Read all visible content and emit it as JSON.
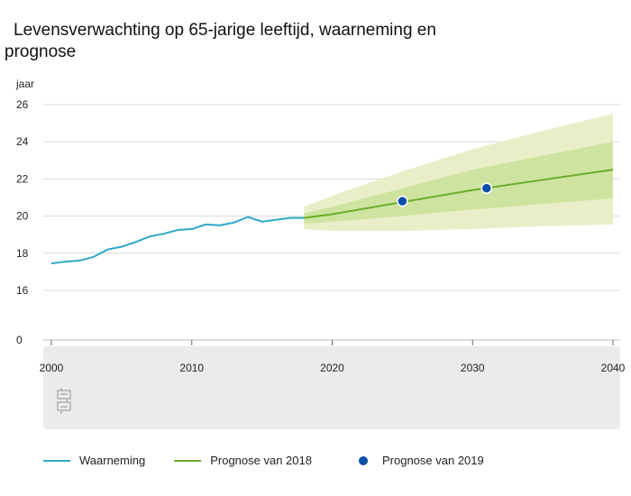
{
  "chart_data": {
    "type": "line",
    "title": "Levensverwachting op 65-jarige leeftijd, waarneming en prognose",
    "ylabel": "jaar",
    "xlabel": "",
    "ylim": [
      0,
      26
    ],
    "xlim": [
      2000,
      2040
    ],
    "yticks": [
      0,
      16,
      18,
      20,
      22,
      24,
      26
    ],
    "xticks": [
      2000,
      2010,
      2020,
      2030,
      2040
    ],
    "grid": true,
    "legend_position": "bottom",
    "series": [
      {
        "name": "Waarneming",
        "type": "line",
        "color": "#2ea8c9",
        "x": [
          2000,
          2001,
          2002,
          2003,
          2004,
          2005,
          2006,
          2007,
          2008,
          2009,
          2010,
          2011,
          2012,
          2013,
          2014,
          2015,
          2016,
          2017,
          2018
        ],
        "values": [
          17.45,
          17.55,
          17.6,
          17.8,
          18.2,
          18.35,
          18.6,
          18.9,
          19.05,
          19.25,
          19.3,
          19.55,
          19.5,
          19.65,
          19.95,
          19.7,
          19.8,
          19.9,
          19.9
        ]
      },
      {
        "name": "Prognose van 2018",
        "type": "line",
        "color": "#69ad2a",
        "x": [
          2018,
          2020,
          2025,
          2030,
          2035,
          2040
        ],
        "values": [
          19.9,
          20.1,
          20.75,
          21.4,
          21.95,
          22.5
        ]
      },
      {
        "name": "Prognose van 2019",
        "type": "scatter",
        "color": "#0b4fa8",
        "x": [
          2025,
          2031
        ],
        "values": [
          20.8,
          21.5
        ]
      }
    ],
    "bands": [
      {
        "color": "#eaeec8",
        "x": [
          2018,
          2020,
          2025,
          2030,
          2035,
          2040
        ],
        "lower": [
          19.3,
          19.2,
          19.2,
          19.3,
          19.45,
          19.55
        ],
        "upper": [
          20.5,
          21.1,
          22.4,
          23.6,
          24.6,
          25.5
        ]
      },
      {
        "color": "#cfe3a0",
        "x": [
          2018,
          2020,
          2025,
          2030,
          2035,
          2040
        ],
        "lower": [
          19.6,
          19.7,
          20.0,
          20.35,
          20.65,
          20.95
        ],
        "upper": [
          20.15,
          20.5,
          21.5,
          22.5,
          23.25,
          24.0
        ]
      }
    ],
    "colors": {
      "plot_bg": "#ffffff",
      "axis_bg": "#ebebeb",
      "grid": "#d9d9d9"
    }
  },
  "legend": [
    {
      "label": "Waarneming",
      "color": "#2ea8c9",
      "kind": "line"
    },
    {
      "label": "Prognose van 2018",
      "color": "#69ad2a",
      "kind": "line"
    },
    {
      "label": "Prognose van 2019",
      "color": "#0b4fa8",
      "kind": "dot"
    }
  ]
}
